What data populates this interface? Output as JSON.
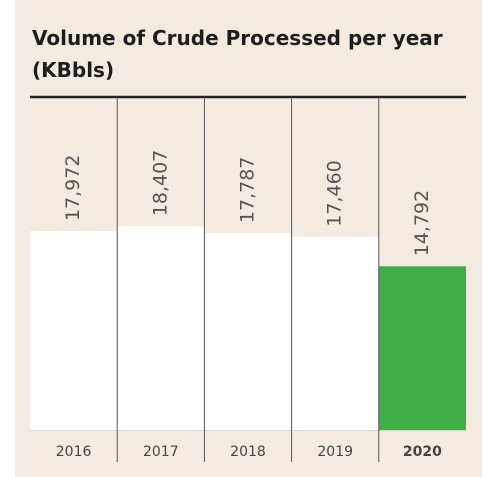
{
  "chart_data": {
    "type": "bar",
    "title": [
      "Volume of Crude Processed per year",
      "(KBbls)"
    ],
    "categories": [
      "2016",
      "2017",
      "2018",
      "2019",
      "2020"
    ],
    "values": [
      17972,
      18407,
      17787,
      17460,
      14792
    ],
    "value_labels": [
      "17,972",
      "18,407",
      "17,787",
      "17,460",
      "14,792"
    ],
    "color": "#ffffff",
    "highlight": "2020",
    "highlight_color": "#3fae49"
  }
}
